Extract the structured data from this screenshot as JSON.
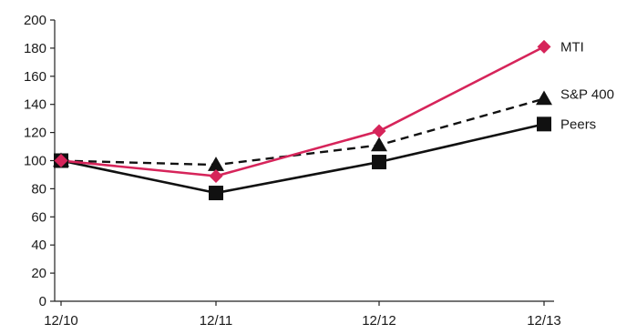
{
  "chart_data": {
    "type": "line",
    "categories": [
      "12/10",
      "12/11",
      "12/12",
      "12/13"
    ],
    "ylim": [
      0,
      200
    ],
    "yticks": [
      0,
      20,
      40,
      60,
      80,
      100,
      120,
      140,
      160,
      180,
      200
    ],
    "grid": false,
    "legend": "inline-right",
    "series": [
      {
        "name": "MTI",
        "values": [
          100,
          89,
          121,
          181
        ],
        "color": "#d6245a",
        "marker": "diamond",
        "dash": "solid"
      },
      {
        "name": "S&P 400",
        "values": [
          100,
          97,
          111,
          144
        ],
        "color": "#111111",
        "marker": "triangle",
        "dash": "dashed"
      },
      {
        "name": "Peers",
        "values": [
          100,
          77,
          99,
          126
        ],
        "color": "#111111",
        "marker": "square",
        "dash": "solid"
      }
    ]
  }
}
